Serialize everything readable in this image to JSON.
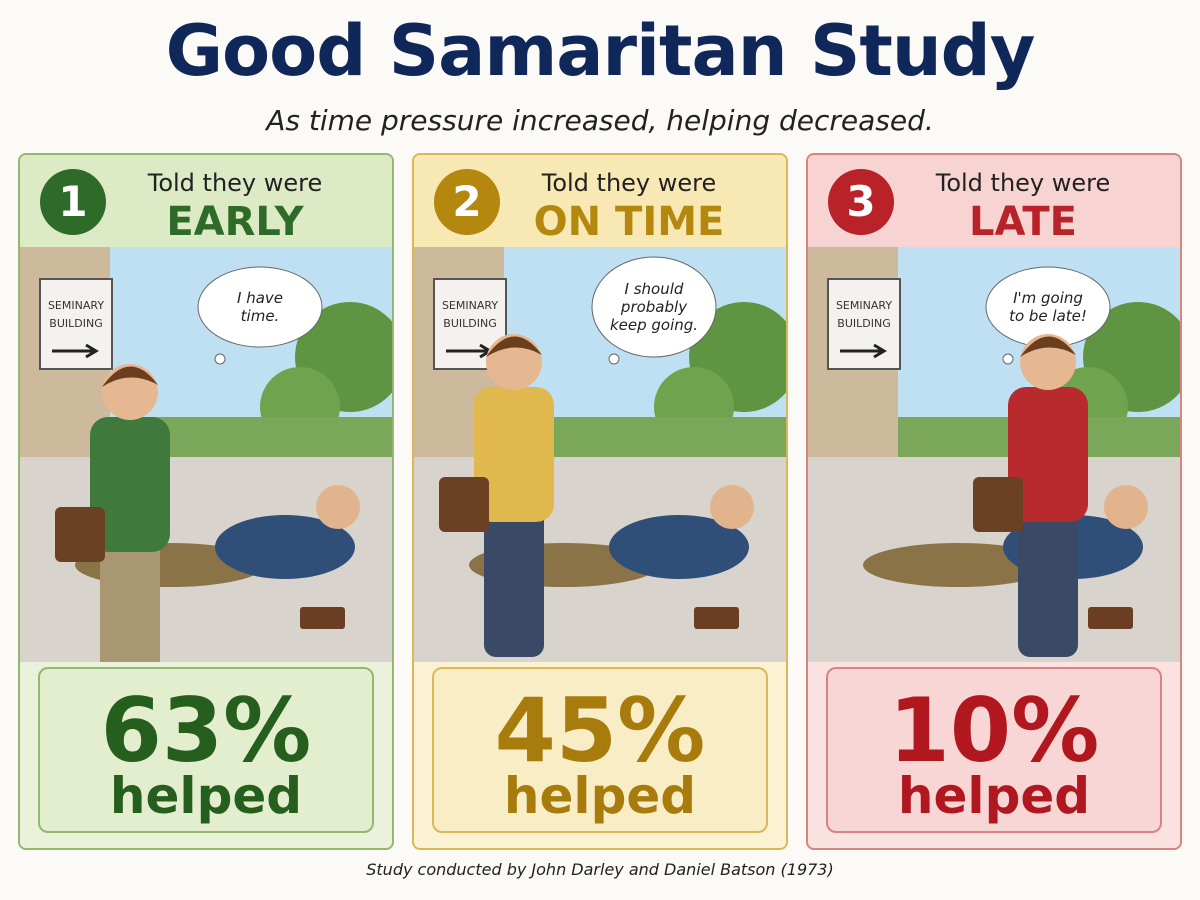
{
  "header": {
    "title": "Good Samaritan Study",
    "subtitle": "As time pressure increased, helping decreased."
  },
  "panels": [
    {
      "number": "1",
      "heading": "Told they were",
      "condition": "EARLY",
      "sign": [
        "SEMINARY",
        "BUILDING"
      ],
      "thought": [
        "I have",
        "time."
      ],
      "stat": "63%",
      "stat_label": "helped"
    },
    {
      "number": "2",
      "heading": "Told they were",
      "condition": "ON TIME",
      "sign": [
        "SEMINARY",
        "BUILDING"
      ],
      "thought": [
        "I should",
        "probably",
        "keep going."
      ],
      "stat": "45%",
      "stat_label": "helped"
    },
    {
      "number": "3",
      "heading": "Told they were",
      "condition": "LATE",
      "sign": [
        "SEMINARY",
        "BUILDING"
      ],
      "thought": [
        "I'm going",
        "to be late!"
      ],
      "stat": "10%",
      "stat_label": "helped"
    }
  ],
  "footer": "Study conducted by John Darley and Daniel Batson (1973)"
}
